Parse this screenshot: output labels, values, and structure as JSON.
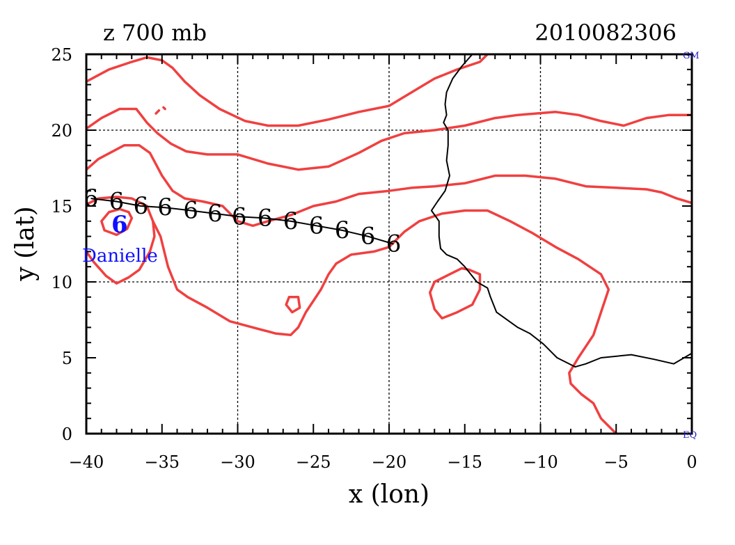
{
  "chart_data": {
    "type": "line",
    "title_left": "z 700 mb",
    "title_right": "2010082306",
    "xlabel": "x (lon)",
    "ylabel": "y (lat)",
    "xlim": [
      -40,
      0
    ],
    "ylim": [
      0,
      25
    ],
    "x_ticks": [
      -40,
      -35,
      -30,
      -25,
      -20,
      -15,
      -10,
      -5,
      0
    ],
    "y_ticks": [
      0,
      5,
      10,
      15,
      20,
      25
    ],
    "x_tick_labels": [
      "−40",
      "−35",
      "−30",
      "−25",
      "−20",
      "−15",
      "−10",
      "−5",
      "0"
    ],
    "y_tick_labels": [
      "0",
      "5",
      "10",
      "15",
      "20",
      "25"
    ],
    "grid_x": [
      -30,
      -20,
      -10
    ],
    "grid_y": [
      10,
      20
    ],
    "corner_labels": {
      "top_right": "GM",
      "bottom_right": "EQ"
    },
    "colors": {
      "contour": "#f04040",
      "track": "#000000",
      "coast": "#000000",
      "storm": "#1010ff",
      "corner": "#2020c0"
    },
    "storm": {
      "name": "Danielle",
      "symbol": "6",
      "lon": -37.8,
      "lat": 13.8
    },
    "track": {
      "symbol": "6",
      "points": [
        [
          -39.7,
          15.5
        ],
        [
          -38.0,
          15.3
        ],
        [
          -36.4,
          15.0
        ],
        [
          -34.8,
          14.9
        ],
        [
          -33.1,
          14.7
        ],
        [
          -31.5,
          14.5
        ],
        [
          -29.9,
          14.3
        ],
        [
          -28.2,
          14.2
        ],
        [
          -26.5,
          14.0
        ],
        [
          -24.8,
          13.7
        ],
        [
          -23.1,
          13.4
        ],
        [
          -21.4,
          13.0
        ],
        [
          -19.7,
          12.5
        ]
      ]
    },
    "coastline": [
      [
        -14.5,
        25
      ],
      [
        -15.2,
        24.2
      ],
      [
        -15.8,
        23.4
      ],
      [
        -16.2,
        22.5
      ],
      [
        -16.3,
        21.7
      ],
      [
        -16.2,
        21.0
      ],
      [
        -16.4,
        20.5
      ],
      [
        -16.1,
        20.0
      ],
      [
        -16.1,
        19.0
      ],
      [
        -16.2,
        18.0
      ],
      [
        -16.0,
        17.0
      ],
      [
        -16.3,
        16.0
      ],
      [
        -16.8,
        15.3
      ],
      [
        -17.2,
        14.7
      ],
      [
        -16.7,
        14.0
      ],
      [
        -16.7,
        13.0
      ],
      [
        -16.6,
        12.2
      ],
      [
        -16.2,
        11.8
      ],
      [
        -15.5,
        11.5
      ],
      [
        -15.0,
        11.0
      ],
      [
        -14.2,
        10.0
      ],
      [
        -13.5,
        9.6
      ],
      [
        -13.3,
        9.0
      ],
      [
        -12.9,
        8.0
      ],
      [
        -11.5,
        7.0
      ],
      [
        -10.7,
        6.6
      ],
      [
        -9.8,
        5.9
      ],
      [
        -8.9,
        5.0
      ],
      [
        -7.7,
        4.4
      ],
      [
        -7.0,
        4.6
      ],
      [
        -6.0,
        5.0
      ],
      [
        -4.0,
        5.2
      ],
      [
        -2.5,
        4.9
      ],
      [
        -1.2,
        4.6
      ],
      [
        0,
        5.3
      ]
    ],
    "contours": [
      [
        [
          -40,
          23.2
        ],
        [
          -38.5,
          24.0
        ],
        [
          -37.0,
          24.5
        ],
        [
          -36.0,
          24.8
        ],
        [
          -35.0,
          24.6
        ],
        [
          -34.3,
          24.1
        ],
        [
          -33.5,
          23.2
        ],
        [
          -32.5,
          22.3
        ],
        [
          -31.2,
          21.4
        ],
        [
          -29.5,
          20.6
        ],
        [
          -28.0,
          20.3
        ],
        [
          -26.0,
          20.3
        ],
        [
          -24.0,
          20.7
        ],
        [
          -22.0,
          21.2
        ],
        [
          -20.0,
          21.6
        ],
        [
          -18.5,
          22.5
        ],
        [
          -17.0,
          23.4
        ],
        [
          -15.5,
          24.0
        ],
        [
          -14.0,
          24.5
        ],
        [
          -13.5,
          25.0
        ]
      ],
      [
        [
          -40,
          20.1
        ],
        [
          -39.0,
          20.8
        ],
        [
          -37.8,
          21.4
        ],
        [
          -36.7,
          21.4
        ],
        [
          -36.0,
          20.5
        ],
        [
          -35.3,
          19.8
        ],
        [
          -34.4,
          19.1
        ],
        [
          -33.4,
          18.6
        ],
        [
          -32.0,
          18.4
        ],
        [
          -30.0,
          18.4
        ],
        [
          -28.0,
          17.8
        ],
        [
          -26.0,
          17.4
        ],
        [
          -24.0,
          17.6
        ],
        [
          -22.0,
          18.5
        ],
        [
          -20.5,
          19.3
        ],
        [
          -19.0,
          19.8
        ],
        [
          -17.0,
          20.0
        ],
        [
          -15.0,
          20.3
        ],
        [
          -13.0,
          20.8
        ],
        [
          -11.5,
          21.0
        ],
        [
          -9.0,
          21.2
        ],
        [
          -7.5,
          21.0
        ],
        [
          -6.0,
          20.6
        ],
        [
          -4.5,
          20.3
        ],
        [
          -3.0,
          20.8
        ],
        [
          -1.5,
          21.0
        ],
        [
          0,
          21.0
        ]
      ],
      [
        [
          -40,
          17.4
        ],
        [
          -39.2,
          18.1
        ],
        [
          -37.5,
          19.0
        ],
        [
          -36.5,
          19.0
        ],
        [
          -35.8,
          18.5
        ],
        [
          -35.0,
          17.0
        ],
        [
          -34.3,
          16.0
        ],
        [
          -33.5,
          15.5
        ],
        [
          -32.3,
          15.3
        ],
        [
          -31.0,
          15.0
        ],
        [
          -30.0,
          14.0
        ],
        [
          -29.0,
          13.7
        ],
        [
          -28.0,
          14.0
        ],
        [
          -26.5,
          14.4
        ],
        [
          -25.0,
          15.0
        ],
        [
          -23.5,
          15.3
        ],
        [
          -22.0,
          15.8
        ],
        [
          -20.0,
          16.0
        ],
        [
          -18.5,
          16.2
        ],
        [
          -17.0,
          16.3
        ],
        [
          -15.0,
          16.5
        ],
        [
          -13.0,
          17.0
        ],
        [
          -11.0,
          17.0
        ],
        [
          -9.0,
          16.8
        ],
        [
          -7.0,
          16.3
        ],
        [
          -5.0,
          16.2
        ],
        [
          -3.0,
          16.1
        ],
        [
          -2.0,
          15.9
        ],
        [
          -1.0,
          15.5
        ],
        [
          0,
          15.2
        ]
      ],
      [
        [
          -40,
          15.1
        ],
        [
          -39.2,
          15.5
        ],
        [
          -38.0,
          15.6
        ],
        [
          -37.0,
          15.5
        ],
        [
          -36.0,
          15.0
        ],
        [
          -35.6,
          14.0
        ],
        [
          -35.5,
          13.0
        ],
        [
          -35.8,
          12.0
        ],
        [
          -36.5,
          10.8
        ],
        [
          -37.2,
          10.3
        ],
        [
          -38.0,
          9.9
        ],
        [
          -38.7,
          10.4
        ],
        [
          -39.5,
          11.3
        ],
        [
          -40,
          12.0
        ]
      ],
      [
        [
          -35.6,
          14.0
        ],
        [
          -35.1,
          13.0
        ],
        [
          -34.6,
          11.0
        ],
        [
          -34.0,
          9.5
        ],
        [
          -33.3,
          9.0
        ],
        [
          -32.0,
          8.3
        ],
        [
          -30.5,
          7.4
        ],
        [
          -29.0,
          7.0
        ],
        [
          -27.5,
          6.6
        ],
        [
          -26.5,
          6.5
        ],
        [
          -26.0,
          7.0
        ],
        [
          -25.5,
          8.0
        ],
        [
          -24.5,
          9.5
        ],
        [
          -24.0,
          10.5
        ],
        [
          -23.5,
          11.2
        ],
        [
          -22.5,
          11.8
        ],
        [
          -21.0,
          12.0
        ],
        [
          -20.0,
          12.3
        ],
        [
          -19.0,
          13.3
        ],
        [
          -18.0,
          14.0
        ],
        [
          -16.5,
          14.5
        ],
        [
          -15.0,
          14.7
        ],
        [
          -13.5,
          14.7
        ],
        [
          -12.0,
          14.0
        ],
        [
          -10.5,
          13.2
        ],
        [
          -9.0,
          12.3
        ],
        [
          -7.5,
          11.5
        ],
        [
          -6.0,
          10.5
        ],
        [
          -5.5,
          9.5
        ],
        [
          -6.0,
          8.0
        ],
        [
          -6.5,
          6.5
        ],
        [
          -7.5,
          5.0
        ],
        [
          -8.1,
          4.0
        ],
        [
          -8.0,
          3.3
        ],
        [
          -7.3,
          2.6
        ],
        [
          -6.5,
          2.0
        ],
        [
          -6.0,
          1.0
        ],
        [
          -5.5,
          0.5
        ],
        [
          -5.0,
          0
        ]
      ],
      [
        [
          -37.0,
          14.2
        ],
        [
          -37.3,
          13.5
        ],
        [
          -38.0,
          13.1
        ],
        [
          -38.8,
          13.4
        ],
        [
          -39.0,
          14.0
        ],
        [
          -38.5,
          14.6
        ],
        [
          -37.8,
          14.8
        ],
        [
          -37.2,
          14.6
        ],
        [
          -37.0,
          14.2
        ]
      ],
      [
        [
          -26.6,
          9.0
        ],
        [
          -26.0,
          9.0
        ],
        [
          -25.9,
          8.3
        ],
        [
          -26.4,
          8.0
        ],
        [
          -26.8,
          8.5
        ],
        [
          -26.6,
          9.0
        ]
      ],
      [
        [
          -14.7,
          10.8
        ],
        [
          -14.0,
          10.5
        ],
        [
          -14.0,
          9.5
        ],
        [
          -14.5,
          8.5
        ],
        [
          -15.5,
          8.0
        ],
        [
          -16.5,
          7.6
        ],
        [
          -17.0,
          8.2
        ],
        [
          -17.3,
          9.3
        ],
        [
          -17.0,
          10.0
        ],
        [
          -16.0,
          10.5
        ],
        [
          -15.2,
          10.9
        ],
        [
          -14.7,
          10.8
        ]
      ],
      [
        [
          -35.2,
          21.3
        ],
        [
          -35.4,
          21.1
        ]
      ],
      [
        [
          -34.9,
          21.5
        ],
        [
          -34.8,
          21.4
        ]
      ]
    ]
  }
}
